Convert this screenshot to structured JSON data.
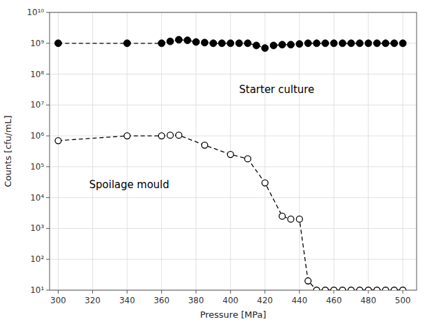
{
  "chart_data": {
    "type": "line",
    "log": "y",
    "grid": true,
    "x_label": "Pressure [MPa]",
    "y_label": "Counts [cfu/mL]",
    "xlim": [
      295,
      508
    ],
    "ylim": [
      10,
      10000000000.0
    ],
    "xticks": [
      300,
      320,
      340,
      360,
      380,
      400,
      420,
      440,
      460,
      480,
      500
    ],
    "yticks": [
      {
        "value": 10,
        "label": "10¹"
      },
      {
        "value": 100,
        "label": "10²"
      },
      {
        "value": 1000,
        "label": "10³"
      },
      {
        "value": 10000,
        "label": "10⁴"
      },
      {
        "value": 100000,
        "label": "10⁵"
      },
      {
        "value": 1000000,
        "label": "10⁶"
      },
      {
        "value": 10000000,
        "label": "10⁷"
      },
      {
        "value": 100000000,
        "label": "10⁸"
      },
      {
        "value": 1000000000,
        "label": "10⁹"
      },
      {
        "value": 10000000000,
        "label": "10¹⁰"
      }
    ],
    "series": [
      {
        "color": "#000000",
        "marker": "filled-circle",
        "line_style": "dashed",
        "x": [
          300,
          340,
          360,
          365,
          370,
          375,
          380,
          385,
          390,
          395,
          400,
          405,
          410,
          415,
          420,
          425,
          430,
          435,
          440,
          445,
          450,
          455,
          460,
          465,
          470,
          475,
          480,
          485,
          490,
          495,
          500
        ],
        "values": [
          1000000000.0,
          1000000000.0,
          1000000000.0,
          1150000000.0,
          1300000000.0,
          1250000000.0,
          1100000000.0,
          1050000000.0,
          1000000000.0,
          1000000000.0,
          1000000000.0,
          1000000000.0,
          1000000000.0,
          850000000.0,
          700000000.0,
          850000000.0,
          900000000.0,
          900000000.0,
          950000000.0,
          1000000000.0,
          1000000000.0,
          1000000000.0,
          1000000000.0,
          1000000000.0,
          1000000000.0,
          1000000000.0,
          1000000000.0,
          1000000000.0,
          1000000000.0,
          1000000000.0,
          1000000000.0
        ]
      },
      {
        "color": "#000000",
        "marker": "open-circle",
        "line_style": "dashed",
        "x": [
          300,
          340,
          360,
          365,
          370,
          385,
          400,
          410,
          420,
          430,
          435,
          440,
          445,
          450,
          455,
          460,
          465,
          470,
          475,
          480,
          485,
          490,
          495,
          500
        ],
        "values": [
          700000.0,
          1000000.0,
          1000000.0,
          1050000.0,
          1050000.0,
          500000.0,
          250000.0,
          180000.0,
          30000.0,
          2500.0,
          2000.0,
          2000.0,
          20,
          10,
          10,
          10,
          10,
          10,
          10,
          10,
          10,
          10,
          10,
          10
        ]
      }
    ],
    "annotations": [
      {
        "text": "Starter culture",
        "x": 405,
        "y": 30000000.0
      },
      {
        "text": "Spoilage mould",
        "x": 318,
        "y": 25000.0
      }
    ]
  }
}
